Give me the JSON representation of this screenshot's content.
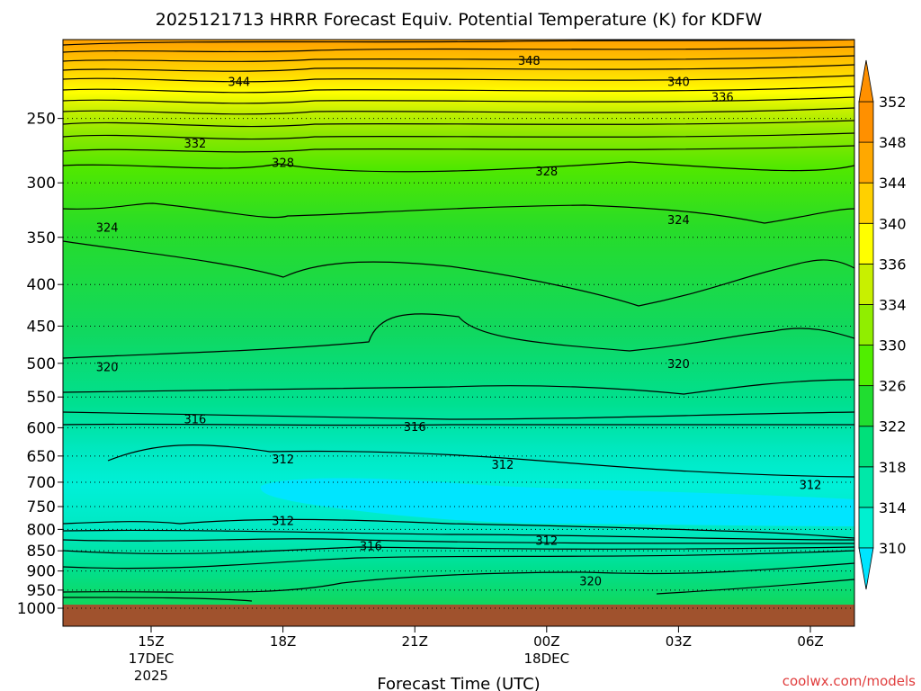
{
  "chart_data": {
    "type": "contour",
    "title": "2025121713 HRRR Forecast Equiv. Potential Temperature (K) for KDFW",
    "xlabel": "Forecast Time (UTC)",
    "ylabel": "",
    "credit": "coolwx.com/models",
    "y_axis": {
      "scale": "log",
      "inverted": true,
      "range": [
        1000,
        200
      ],
      "ticks": [
        "250",
        "300",
        "350",
        "400",
        "450",
        "500",
        "550",
        "600",
        "650",
        "700",
        "750",
        "800",
        "850",
        "900",
        "950",
        "1000"
      ]
    },
    "x_axis": {
      "ticks": [
        {
          "label": "15Z",
          "sub1": "17DEC",
          "sub2": "2025"
        },
        {
          "label": "18Z",
          "sub1": "",
          "sub2": ""
        },
        {
          "label": "21Z",
          "sub1": "",
          "sub2": ""
        },
        {
          "label": "00Z",
          "sub1": "18DEC",
          "sub2": ""
        },
        {
          "label": "03Z",
          "sub1": "",
          "sub2": ""
        },
        {
          "label": "06Z",
          "sub1": "",
          "sub2": ""
        }
      ]
    },
    "grid": true,
    "colorbar": {
      "levels": [
        "310",
        "314",
        "318",
        "322",
        "326",
        "330",
        "334",
        "336",
        "340",
        "344",
        "348",
        "352"
      ],
      "colors": [
        "#00e5ff",
        "#00f0d0",
        "#00e8a8",
        "#00e07a",
        "#20dd30",
        "#50ee00",
        "#90ee00",
        "#c8f000",
        "#ffff00",
        "#ffd000",
        "#ffa800",
        "#ff9000"
      ],
      "extend": "both"
    },
    "contour_labels": [
      {
        "text": "348",
        "time": "21Z+2.6h",
        "p": 212
      },
      {
        "text": "344",
        "time": "17Z",
        "p": 225
      },
      {
        "text": "340",
        "time": "03Z",
        "p": 225
      },
      {
        "text": "336",
        "time": "04Z",
        "p": 235
      },
      {
        "text": "332",
        "time": "16Z",
        "p": 268
      },
      {
        "text": "328",
        "time": "18Z",
        "p": 283
      },
      {
        "text": "328",
        "time": "00Z",
        "p": 290
      },
      {
        "text": "324",
        "time": "14Z",
        "p": 340
      },
      {
        "text": "324",
        "time": "03Z",
        "p": 333
      },
      {
        "text": "320",
        "time": "14Z",
        "p": 505
      },
      {
        "text": "320",
        "time": "03Z",
        "p": 500
      },
      {
        "text": "316",
        "time": "16Z",
        "p": 585
      },
      {
        "text": "316",
        "time": "21Z",
        "p": 598
      },
      {
        "text": "316",
        "time": "20Z",
        "p": 838
      },
      {
        "text": "312",
        "time": "18Z",
        "p": 655
      },
      {
        "text": "312",
        "time": "23Z",
        "p": 665
      },
      {
        "text": "312",
        "time": "06Z",
        "p": 705
      },
      {
        "text": "312",
        "time": "18Z",
        "p": 780
      },
      {
        "text": "312",
        "time": "00Z",
        "p": 825
      },
      {
        "text": "320",
        "time": "01Z",
        "p": 925
      }
    ],
    "ground": {
      "below_p": 1000,
      "color": "#a0522d"
    }
  }
}
